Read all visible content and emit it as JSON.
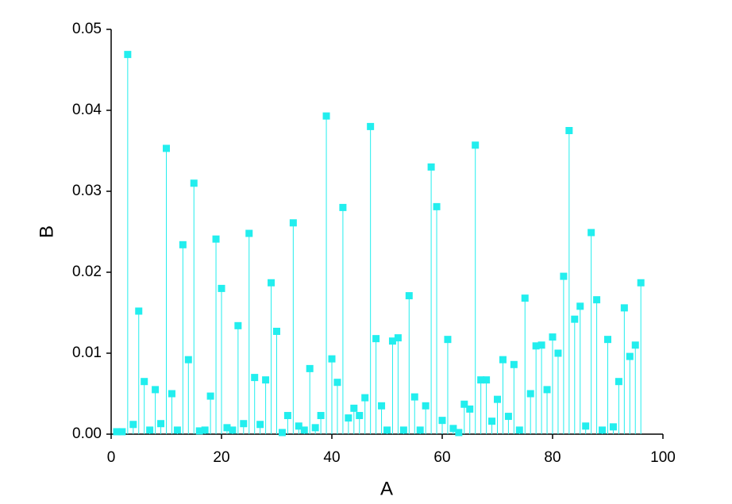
{
  "chart_data": {
    "type": "stem",
    "x_label": "A",
    "y_label": "B",
    "color": "#22eeee",
    "x": [
      1,
      2,
      3,
      4,
      5,
      6,
      7,
      8,
      9,
      10,
      11,
      12,
      13,
      14,
      15,
      16,
      17,
      18,
      19,
      20,
      21,
      22,
      23,
      24,
      25,
      26,
      27,
      28,
      29,
      30,
      31,
      32,
      33,
      34,
      35,
      36,
      37,
      38,
      39,
      40,
      41,
      42,
      43,
      44,
      45,
      46,
      47,
      48,
      49,
      50,
      51,
      52,
      53,
      54,
      55,
      56,
      57,
      58,
      59,
      60,
      61,
      62,
      63,
      64,
      65,
      66,
      67,
      68,
      69,
      70,
      71,
      72,
      73,
      74,
      75,
      76,
      77,
      78,
      79,
      80,
      81,
      82,
      83,
      84,
      85,
      86,
      87,
      88,
      89,
      90,
      91,
      92,
      93,
      94,
      95,
      96
    ],
    "values": [
      0.0003,
      0.0003,
      0.0469,
      0.0012,
      0.0152,
      0.0065,
      0.0005,
      0.0055,
      0.0013,
      0.0353,
      0.005,
      0.0005,
      0.0234,
      0.0092,
      0.031,
      0.0004,
      0.0005,
      0.0047,
      0.0241,
      0.018,
      0.0008,
      0.0005,
      0.0134,
      0.0013,
      0.0248,
      0.007,
      0.0012,
      0.0067,
      0.0187,
      0.0127,
      0.0002,
      0.0023,
      0.0261,
      0.001,
      0.0005,
      0.0081,
      0.0008,
      0.0023,
      0.0393,
      0.0093,
      0.0064,
      0.028,
      0.002,
      0.0032,
      0.0023,
      0.0045,
      0.038,
      0.0118,
      0.0035,
      0.0005,
      0.0115,
      0.0119,
      0.0005,
      0.0171,
      0.0046,
      0.0005,
      0.0035,
      0.033,
      0.0281,
      0.0017,
      0.0117,
      0.0007,
      0.0002,
      0.0037,
      0.0031,
      0.0357,
      0.0067,
      0.0067,
      0.0016,
      0.0043,
      0.0092,
      0.0022,
      0.0086,
      0.0005,
      0.0168,
      0.005,
      0.0109,
      0.011,
      0.0055,
      0.012,
      0.01,
      0.0195,
      0.0375,
      0.0142,
      0.0158,
      0.001,
      0.0249,
      0.0166,
      0.0005,
      0.0117,
      0.0009,
      0.0065,
      0.0156,
      0.0096,
      0.011,
      0.0187
    ],
    "xlim": [
      0,
      100
    ],
    "xticks": [
      0,
      20,
      40,
      60,
      80,
      100
    ],
    "ylim": [
      0,
      0.05
    ],
    "yticks": [
      {
        "value": 0,
        "label": "0.00"
      },
      0.01,
      0.02,
      0.03,
      0.04,
      0.05
    ]
  }
}
